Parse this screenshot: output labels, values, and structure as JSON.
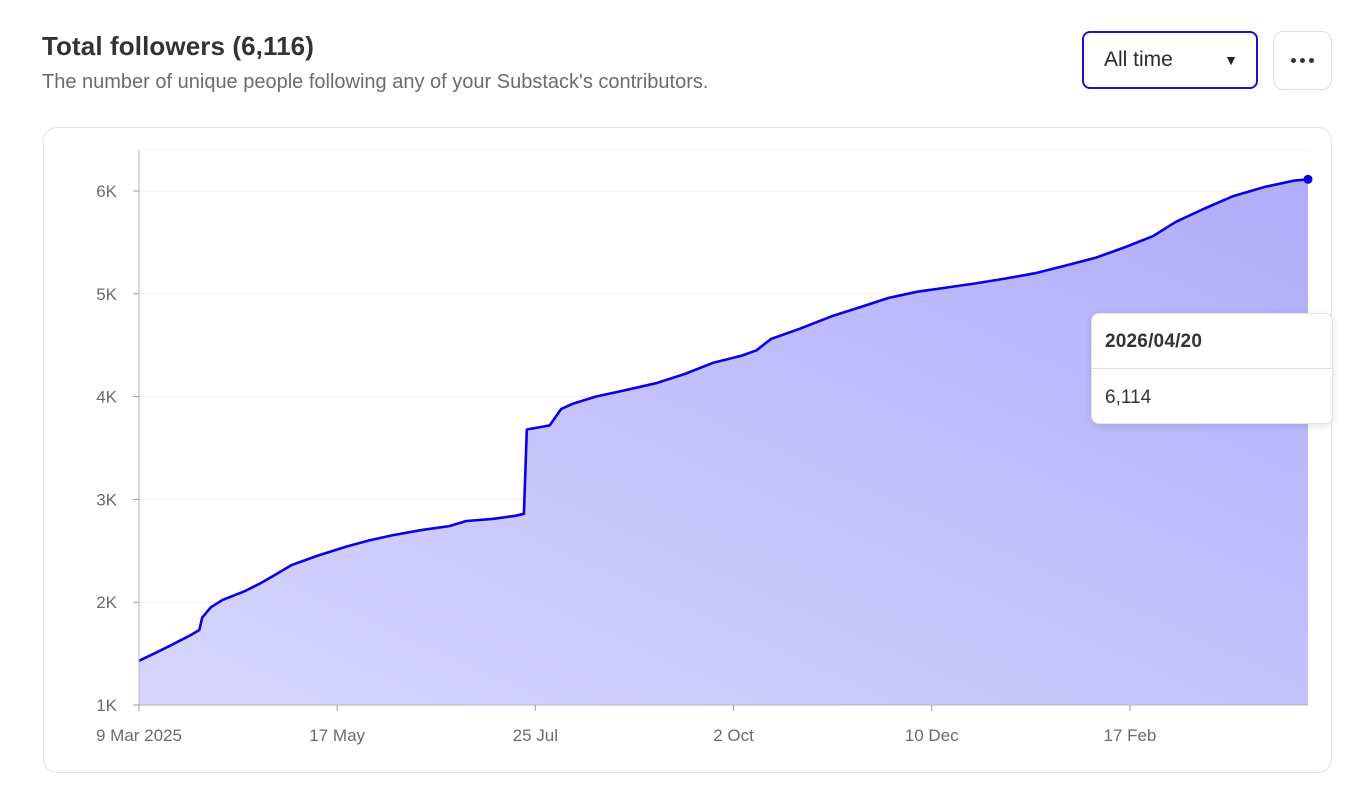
{
  "header": {
    "title": "Total followers (6,116)",
    "subtitle": "The number of unique people following any of your Substack's contributors."
  },
  "controls": {
    "range_selected": "All time",
    "caret_icon": "caret-down-icon",
    "more_icon": "more-horizontal-icon"
  },
  "tooltip": {
    "date": "2026/04/20",
    "value": "6,114"
  },
  "colors": {
    "accent": "#1a14c8",
    "line": "#0a00e0",
    "fill_light": "#d6d4ff",
    "fill_dark": "#b3b0fb"
  },
  "chart_data": {
    "type": "area",
    "title": "Total followers (6,116)",
    "xlabel": "",
    "ylabel": "",
    "grid": true,
    "legend": "none",
    "ylim": [
      1000,
      6300
    ],
    "xlim": [
      "2025-03-09",
      "2026-04-20"
    ],
    "y_ticks": [
      {
        "value": 1000,
        "label": "1K"
      },
      {
        "value": 2000,
        "label": "2K"
      },
      {
        "value": 3000,
        "label": "3K"
      },
      {
        "value": 4000,
        "label": "4K"
      },
      {
        "value": 5000,
        "label": "5K"
      },
      {
        "value": 6000,
        "label": "6K"
      }
    ],
    "x_ticks": [
      {
        "date": "2025-03-09",
        "label": "9 Mar 2025"
      },
      {
        "date": "2025-05-17",
        "label": "17 May"
      },
      {
        "date": "2025-07-25",
        "label": "25 Jul"
      },
      {
        "date": "2025-10-02",
        "label": "2 Oct"
      },
      {
        "date": "2025-12-10",
        "label": "10 Dec"
      },
      {
        "date": "2026-02-17",
        "label": "17 Feb"
      }
    ],
    "highlight": {
      "x": "2026-04-20",
      "y": 6114
    },
    "series": [
      {
        "x": [
          "2025-03-09",
          "2025-03-15",
          "2025-03-20",
          "2025-03-27",
          "2025-03-30",
          "2025-03-31",
          "2025-04-03",
          "2025-04-07",
          "2025-04-15",
          "2025-04-20",
          "2025-04-25",
          "2025-05-01",
          "2025-05-10",
          "2025-05-20",
          "2025-05-28",
          "2025-06-05",
          "2025-06-15",
          "2025-06-25",
          "2025-07-01",
          "2025-07-10",
          "2025-07-18",
          "2025-07-21",
          "2025-07-22",
          "2025-07-30",
          "2025-08-03",
          "2025-08-07",
          "2025-08-15",
          "2025-08-25",
          "2025-09-05",
          "2025-09-15",
          "2025-09-25",
          "2025-10-05",
          "2025-10-10",
          "2025-10-15",
          "2025-10-25",
          "2025-11-05",
          "2025-11-15",
          "2025-11-25",
          "2025-12-05",
          "2025-12-15",
          "2025-12-25",
          "2026-01-05",
          "2026-01-15",
          "2026-01-25",
          "2026-02-05",
          "2026-02-15",
          "2026-02-25",
          "2026-03-05",
          "2026-03-15",
          "2026-03-25",
          "2026-04-05",
          "2026-04-15",
          "2026-04-20"
        ],
        "y": [
          1430,
          1510,
          1580,
          1680,
          1730,
          1850,
          1950,
          2020,
          2110,
          2180,
          2260,
          2360,
          2450,
          2540,
          2600,
          2650,
          2700,
          2740,
          2790,
          2810,
          2840,
          2860,
          3680,
          3720,
          3880,
          3930,
          4000,
          4060,
          4130,
          4220,
          4330,
          4400,
          4450,
          4560,
          4660,
          4780,
          4870,
          4960,
          5020,
          5060,
          5100,
          5150,
          5200,
          5270,
          5350,
          5450,
          5560,
          5700,
          5830,
          5950,
          6040,
          6100,
          6114
        ]
      }
    ]
  }
}
